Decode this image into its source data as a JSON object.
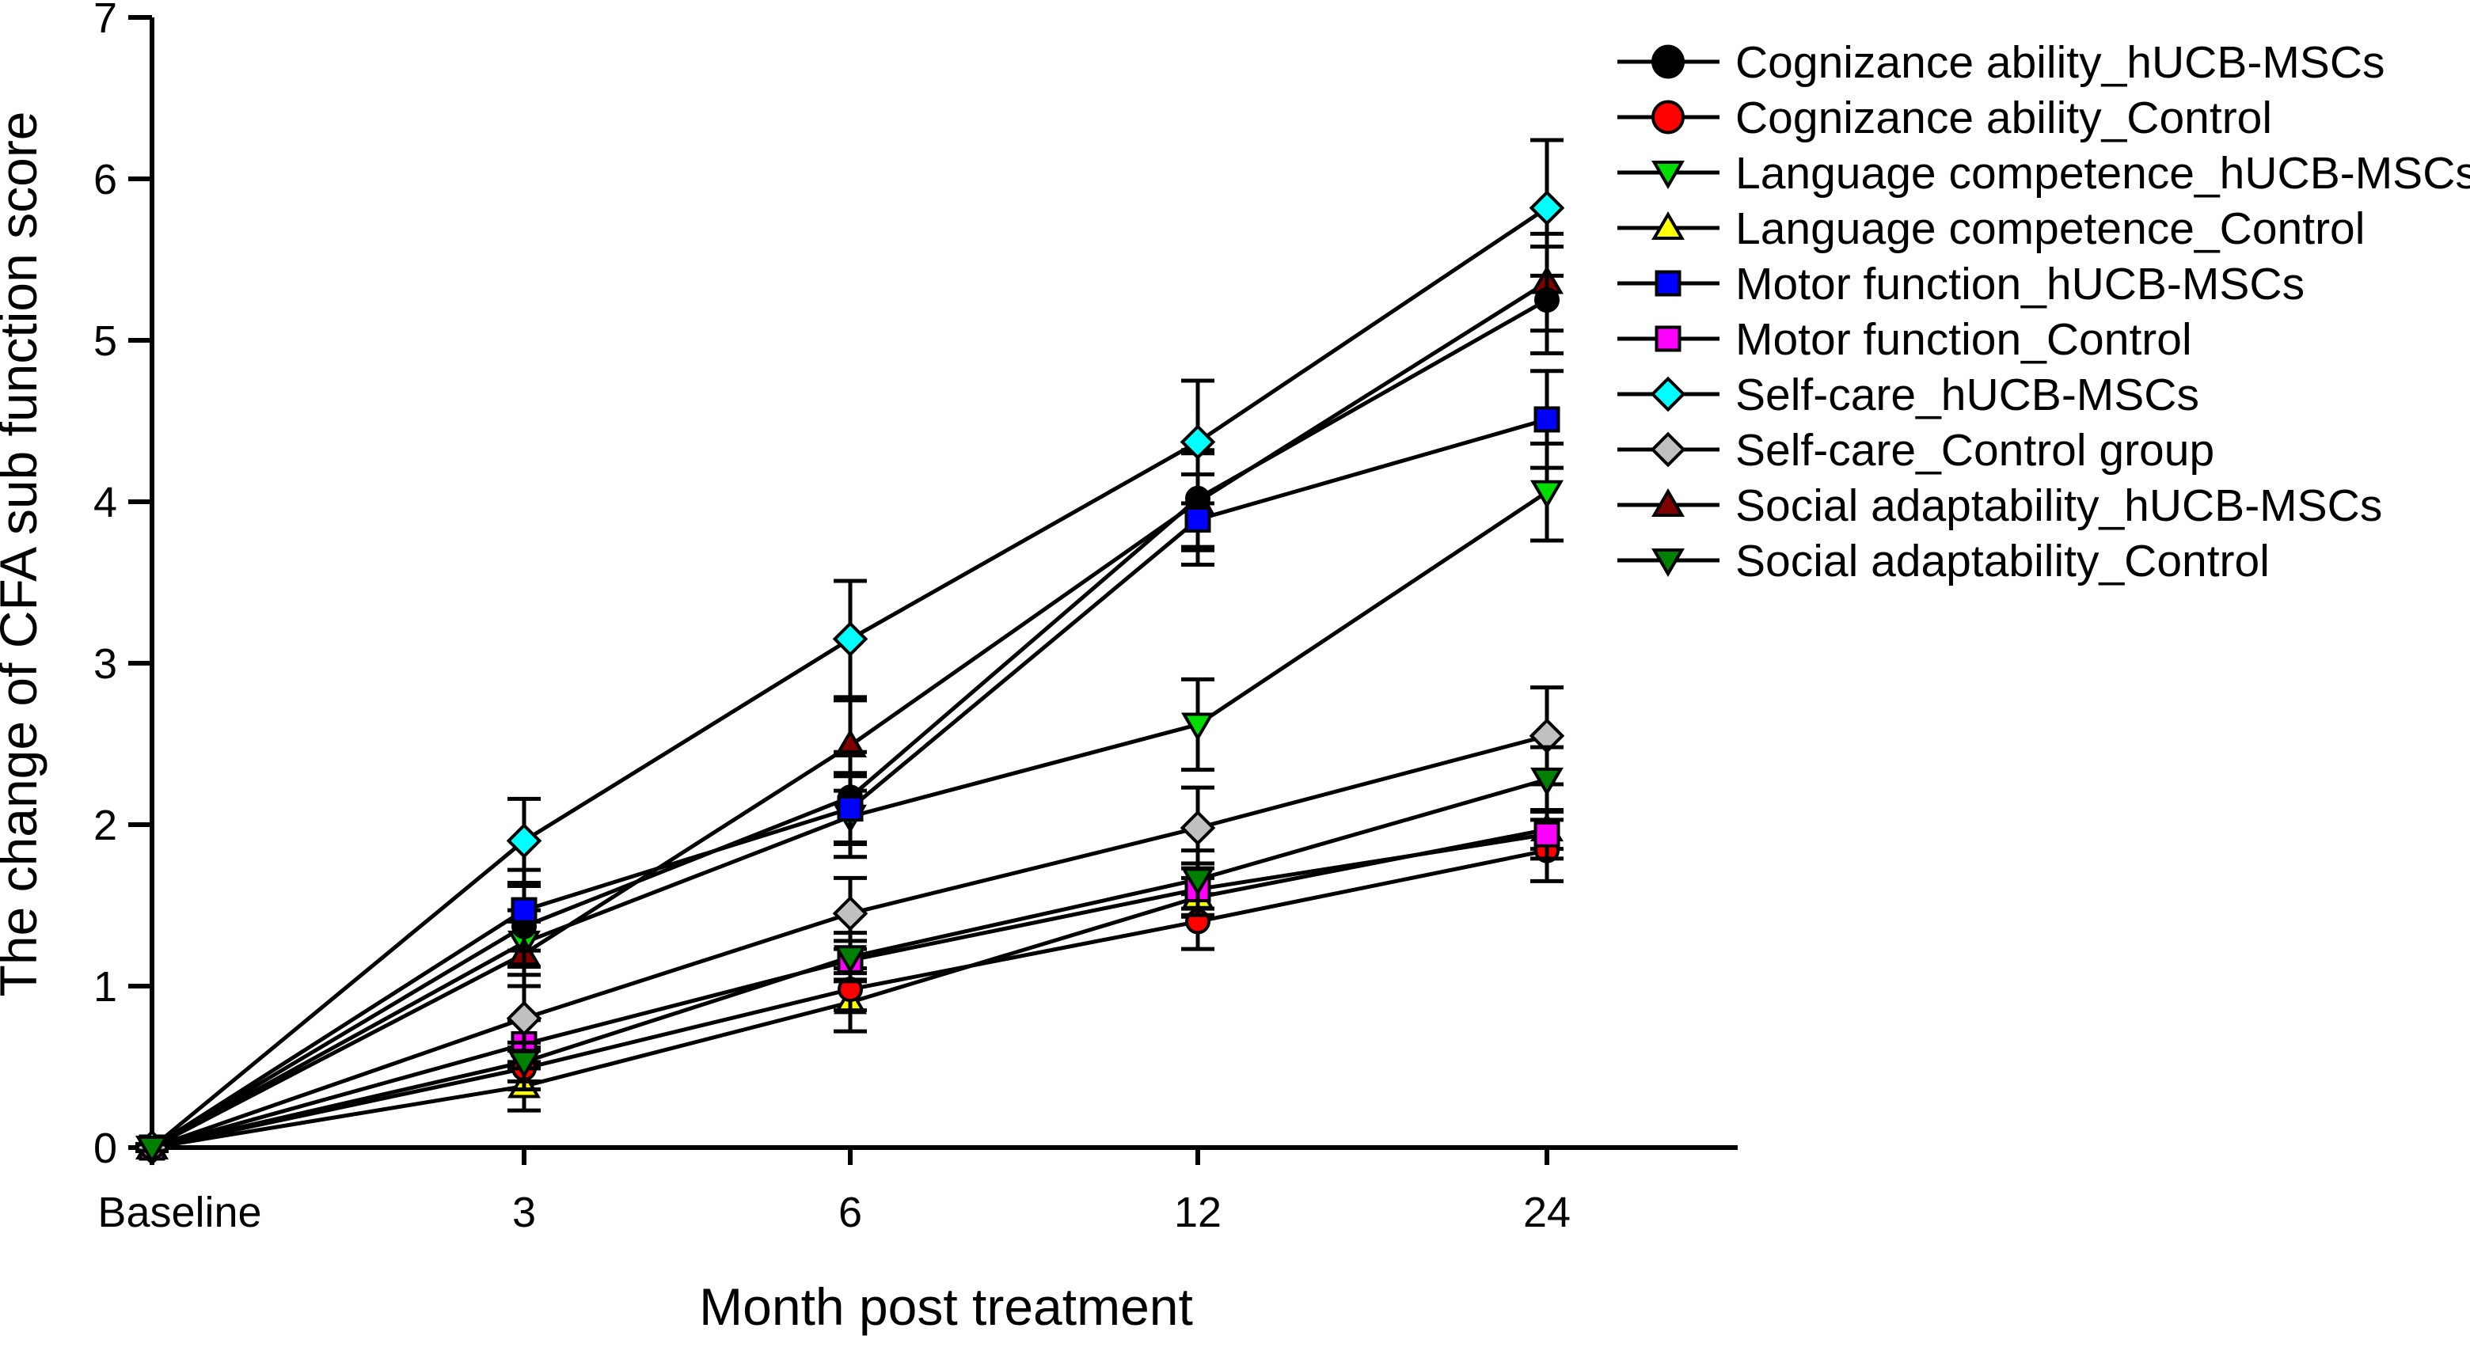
{
  "chart_data": {
    "type": "line",
    "categories": [
      "Baseline",
      "3",
      "6",
      "12",
      "24"
    ],
    "title": "",
    "xlabel": "Month post treatment",
    "ylabel": "The change of CFA sub function score",
    "ylim": [
      0,
      7
    ],
    "y_ticks": [
      0,
      1,
      2,
      3,
      4,
      5,
      6,
      7
    ],
    "grid": false,
    "legend_position": "right-top-outside",
    "error_bars": true,
    "series": [
      {
        "name": "Cognizance ability_hUCB-MSCs",
        "marker": "circle",
        "color": "#000000",
        "values": [
          0,
          1.37,
          2.17,
          4.02,
          5.25
        ],
        "errors": [
          0.02,
          0.25,
          0.28,
          0.3,
          0.33
        ]
      },
      {
        "name": "Cognizance ability_Control",
        "marker": "circle",
        "color": "#ff0000",
        "values": [
          0,
          0.49,
          0.98,
          1.4,
          1.84
        ],
        "errors": [
          0.02,
          0.13,
          0.13,
          0.17,
          0.19
        ]
      },
      {
        "name": "Language competence_hUCB-MSCs",
        "marker": "triangle-down",
        "color": "#00dd00",
        "values": [
          0,
          1.27,
          2.05,
          2.62,
          4.06
        ],
        "errors": [
          0.02,
          0.2,
          0.25,
          0.28,
          0.3
        ]
      },
      {
        "name": "Language competence_Control",
        "marker": "triangle-up",
        "color": "#ffff00",
        "values": [
          0,
          0.38,
          0.9,
          1.55,
          1.97
        ],
        "errors": [
          0.02,
          0.15,
          0.18,
          0.12,
          0.12
        ]
      },
      {
        "name": "Motor function_hUCB-MSCs",
        "marker": "square",
        "color": "#0000ff",
        "values": [
          0,
          1.47,
          2.1,
          3.89,
          4.51
        ],
        "errors": [
          0.02,
          0.25,
          0.22,
          0.28,
          0.3
        ]
      },
      {
        "name": "Motor function_Control",
        "marker": "square",
        "color": "#ff00ff",
        "values": [
          0,
          0.64,
          1.16,
          1.6,
          1.94
        ],
        "errors": [
          0.02,
          0.15,
          0.12,
          0.16,
          0.15
        ]
      },
      {
        "name": "Self-care_hUCB-MSCs",
        "marker": "diamond",
        "color": "#00ffff",
        "values": [
          0,
          1.9,
          3.15,
          4.37,
          5.82
        ],
        "errors": [
          0.02,
          0.26,
          0.36,
          0.38,
          0.42
        ]
      },
      {
        "name": "Self-care_Control group",
        "marker": "diamond",
        "color": "#c0c0c0",
        "values": [
          0,
          0.8,
          1.45,
          1.98,
          2.55
        ],
        "errors": [
          0.02,
          0.2,
          0.22,
          0.25,
          0.3
        ]
      },
      {
        "name": "Social adaptability_hUCB-MSCs",
        "marker": "triangle-up",
        "color": "#800000",
        "values": [
          0,
          1.2,
          2.49,
          4.0,
          5.36
        ],
        "errors": [
          0.02,
          0.2,
          0.28,
          0.3,
          0.3
        ]
      },
      {
        "name": "Social adaptability_Control",
        "marker": "triangle-down",
        "color": "#008000",
        "values": [
          0,
          0.53,
          1.18,
          1.66,
          2.28
        ],
        "errors": [
          0.02,
          0.12,
          0.15,
          0.18,
          0.2
        ]
      }
    ]
  }
}
